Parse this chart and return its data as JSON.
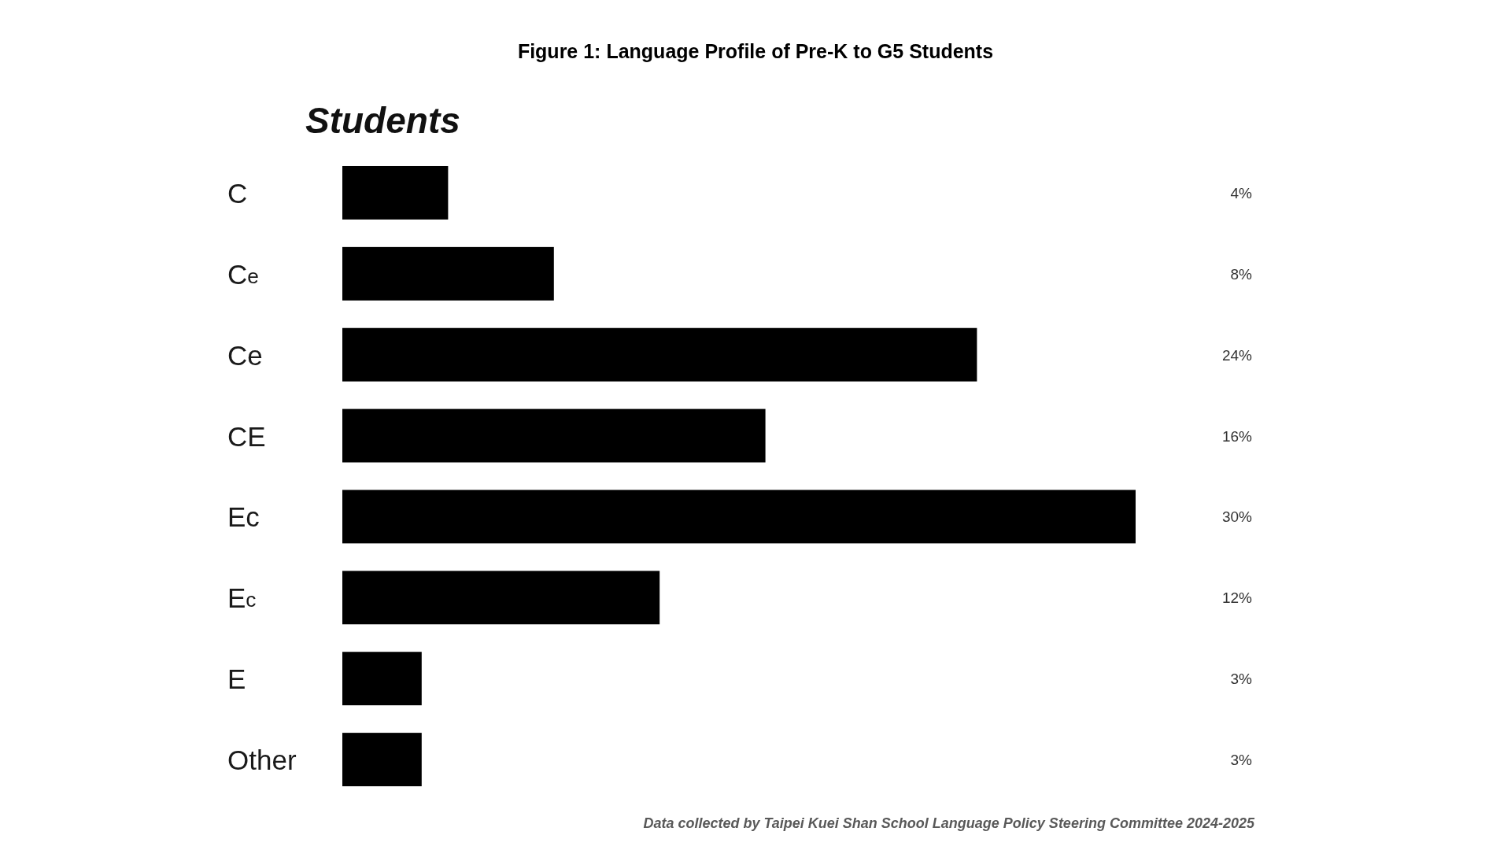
{
  "chart_data": {
    "type": "bar",
    "orientation": "horizontal",
    "title": "Figure 1: Language Profile of Pre-K to G5 Students",
    "subtitle": "Students",
    "categories": [
      "C",
      "C$_{e}$",
      "Ce",
      "CE",
      "Ec",
      "E$_{c}$",
      "E",
      "Other"
    ],
    "values": [
      4,
      8,
      24,
      16,
      30,
      12,
      3,
      3
    ],
    "value_labels": [
      "4%",
      "8%",
      "24%",
      "16%",
      "30%",
      "12%",
      "3%",
      "3%"
    ],
    "color": "#000000",
    "annotations": [
      "Data collected by Taipei Kuei Shan School Language Policy Steering Committee 2024-2025"
    ]
  }
}
